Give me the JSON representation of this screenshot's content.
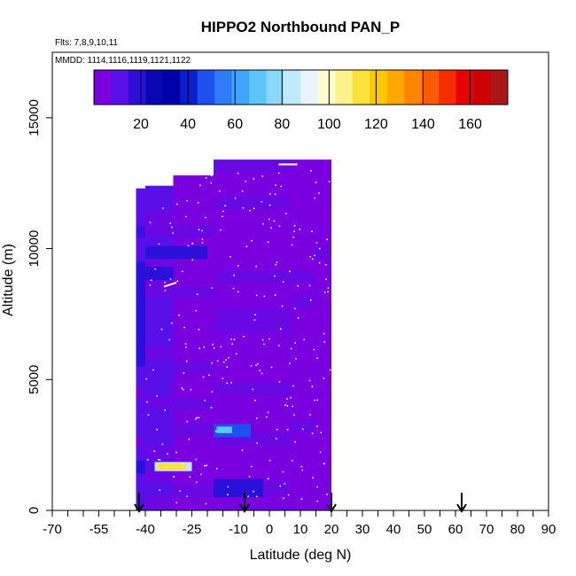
{
  "chart_data": {
    "type": "heatmap",
    "title": "HIPPO2 Northbound PAN_P",
    "flights_label": "Flts: 7,8,9,10,11",
    "dates_label": "MMDD: 1114,1116,1119,1121,1122",
    "xlabel": "Latitude (deg N)",
    "ylabel": "Altitude (m)",
    "xlim": [
      -70,
      90
    ],
    "ylim": [
      0,
      17500
    ],
    "x_tick_labels": [
      "-70",
      "-55",
      "-40",
      "-25",
      "-10",
      "0",
      "10",
      "20",
      "30",
      "40",
      "50",
      "60",
      "70",
      "80",
      "90"
    ],
    "x_tick_values": [
      -70,
      -55,
      -40,
      -25,
      -10,
      0,
      10,
      20,
      30,
      40,
      50,
      60,
      70,
      80,
      90
    ],
    "y_tick_labels": [
      "0",
      "5000",
      "10000",
      "15000"
    ],
    "y_tick_values": [
      0,
      5000,
      10000,
      15000
    ],
    "colorbar": {
      "range": [
        0,
        176
      ],
      "tick_labels": [
        "20",
        "40",
        "60",
        "80",
        "100",
        "120",
        "140",
        "160"
      ],
      "tick_values": [
        20,
        40,
        60,
        80,
        100,
        120,
        140,
        160
      ],
      "colors": [
        "#7b00e0",
        "#5a10e8",
        "#2a10d8",
        "#0808b0",
        "#0000a8",
        "#0a1ed0",
        "#1e50f0",
        "#2e7cf8",
        "#3fa4fb",
        "#5cc6fc",
        "#8ad9fc",
        "#bfe9fd",
        "#e8f5fc",
        "#fffcd0",
        "#fff38a",
        "#fde23c",
        "#fdc800",
        "#fca800",
        "#fb8500",
        "#f85c00",
        "#f42c00",
        "#ea0000",
        "#cc0000",
        "#a81818"
      ]
    },
    "flight_markers_lat": [
      -42,
      -8,
      20,
      62
    ],
    "columns": [
      {
        "lat": [
          -43,
          -40
        ],
        "alt": [
          0,
          12300
        ],
        "value": 10
      },
      {
        "lat": [
          -40,
          -31
        ],
        "alt": [
          0,
          12400
        ],
        "value": 8
      },
      {
        "lat": [
          -31,
          -18
        ],
        "alt": [
          0,
          12800
        ],
        "value": 6
      },
      {
        "lat": [
          -18,
          7
        ],
        "alt": [
          0,
          13400
        ],
        "value": 5
      },
      {
        "lat": [
          7,
          14
        ],
        "alt": [
          0,
          13400
        ],
        "value": 4
      },
      {
        "lat": [
          14,
          20
        ],
        "alt": [
          0,
          13400
        ],
        "value": 3
      }
    ],
    "anomalies": [
      {
        "lat": [
          -43,
          -40
        ],
        "alt": [
          1400,
          1900
        ],
        "value": 18
      },
      {
        "lat": [
          -37,
          -25
        ],
        "alt": [
          1500,
          1850
        ],
        "value": 85
      },
      {
        "lat": [
          -36,
          -27
        ],
        "alt": [
          1550,
          1800
        ],
        "value": 110
      },
      {
        "lat": [
          -40,
          -31
        ],
        "alt": [
          8800,
          9300
        ],
        "value": 16
      },
      {
        "lat": [
          -43,
          -40
        ],
        "alt": [
          5500,
          9500
        ],
        "value": 16
      },
      {
        "lat": [
          -18,
          -6
        ],
        "alt": [
          2800,
          3300
        ],
        "value": 45
      },
      {
        "lat": [
          -17,
          -12
        ],
        "alt": [
          2950,
          3200
        ],
        "value": 70
      },
      {
        "lat": [
          -18,
          -2
        ],
        "alt": [
          500,
          1200
        ],
        "value": 18
      },
      {
        "lat": [
          -40,
          -20
        ],
        "alt": [
          9600,
          10100
        ],
        "value": 15
      }
    ]
  }
}
